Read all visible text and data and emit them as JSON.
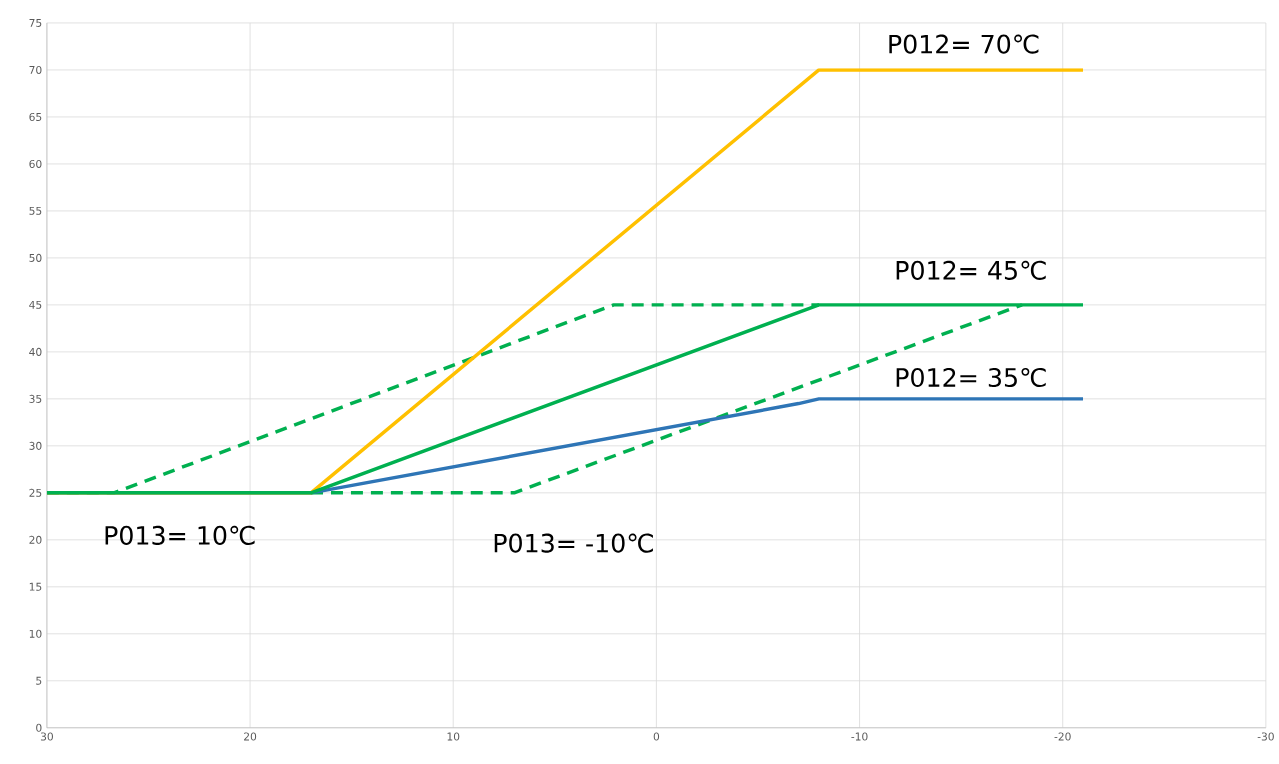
{
  "chart_data": {
    "type": "line",
    "xlim": [
      30,
      -30
    ],
    "xticks": [
      30,
      20,
      10,
      0,
      -10,
      -20,
      -30
    ],
    "ylim": [
      0,
      75
    ],
    "yticks": [
      0,
      5,
      10,
      15,
      20,
      25,
      30,
      35,
      40,
      45,
      50,
      55,
      60,
      65,
      70,
      75
    ],
    "grid": true,
    "series": [
      {
        "color": "#00b050",
        "line_style": "dashed",
        "x": [
          30,
          26.7,
          2.1,
          -8
        ],
        "values": [
          25,
          25,
          45,
          45
        ]
      },
      {
        "color": "#00b050",
        "line_style": "dashed",
        "x": [
          17,
          7,
          -18
        ],
        "values": [
          25,
          25,
          45
        ]
      },
      {
        "color": "#2e75b6",
        "line_style": "solid",
        "x": [
          30,
          17,
          -7,
          -8,
          -21
        ],
        "values": [
          25,
          25,
          34.5,
          35,
          35
        ]
      },
      {
        "color": "#ffc000",
        "line_style": "solid",
        "x": [
          30,
          17,
          -8,
          -21
        ],
        "values": [
          25,
          25,
          70,
          70
        ]
      },
      {
        "color": "#00b050",
        "line_style": "solid",
        "x": [
          30,
          17,
          -8,
          -21
        ],
        "values": [
          25,
          25,
          45,
          45
        ]
      }
    ],
    "annotations": [
      "P012= 70℃",
      "P012= 45℃",
      "P012= 35℃",
      "P013= 10℃",
      "P013= -10℃"
    ]
  }
}
